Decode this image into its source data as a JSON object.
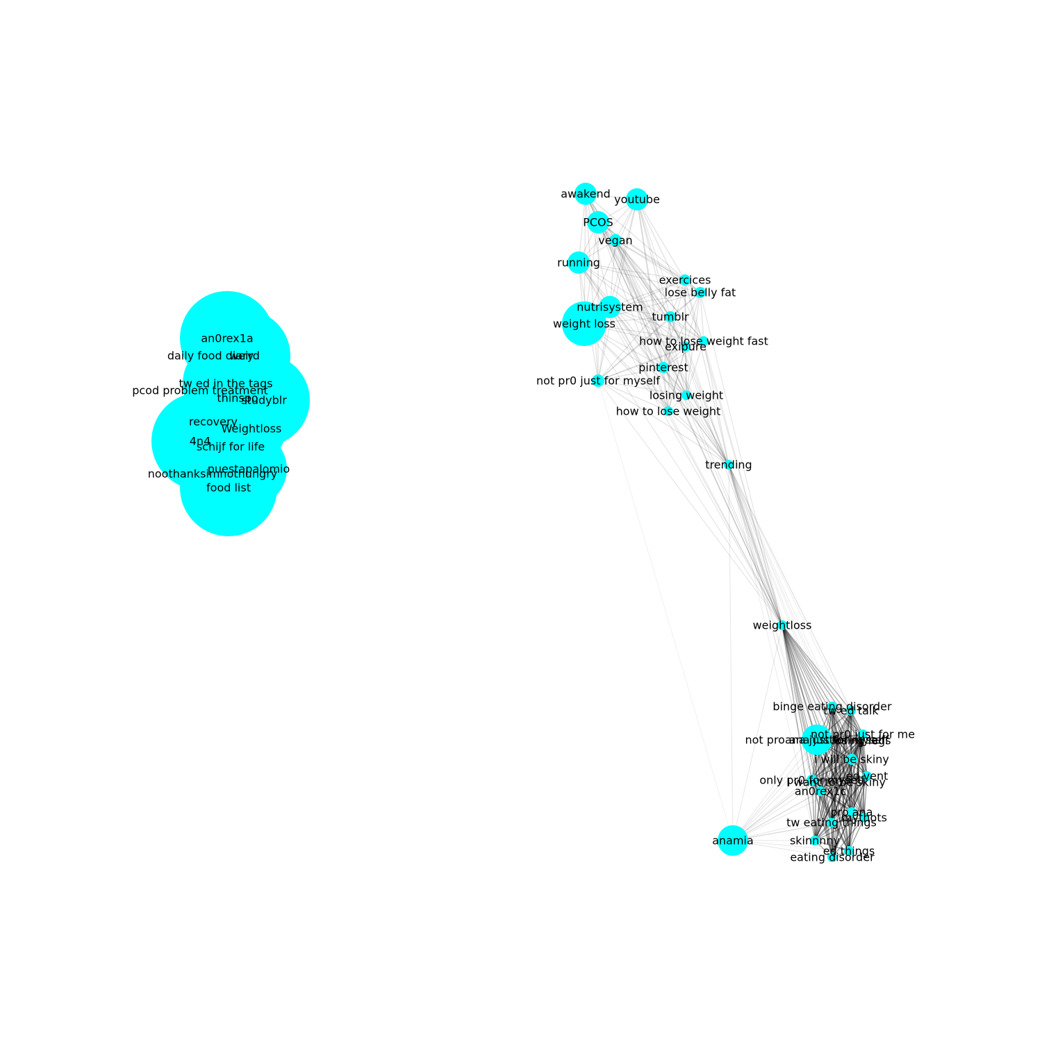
{
  "graph": {
    "type": "network",
    "node_color": "#00ffff",
    "edge_color": "#000000",
    "nodes": [
      {
        "id": "an0rex1a",
        "label": "an0rex1a"
      },
      {
        "id": "daily food diary",
        "label": "daily food diary"
      },
      {
        "id": "weird",
        "label": "weird"
      },
      {
        "id": "tw ed in the tags",
        "label": "tw ed in the tags"
      },
      {
        "id": "pcod problem treatment",
        "label": "pcod problem treatment"
      },
      {
        "id": "thinspo",
        "label": "thinspo"
      },
      {
        "id": "studyblr",
        "label": "studyblr"
      },
      {
        "id": "recovery",
        "label": "recovery"
      },
      {
        "id": "Weightloss",
        "label": "Weightloss"
      },
      {
        "id": "4n4",
        "label": "4n4"
      },
      {
        "id": "schijf for life",
        "label": "schijf for life"
      },
      {
        "id": "puestapalomio",
        "label": "puestapalomio"
      },
      {
        "id": "noothanksimnothungry",
        "label": "noothanksimnothungry"
      },
      {
        "id": "food list",
        "label": "food list"
      },
      {
        "id": "awakend",
        "label": "awakend"
      },
      {
        "id": "youtube",
        "label": "youtube"
      },
      {
        "id": "PCOS",
        "label": "PCOS"
      },
      {
        "id": "vegan",
        "label": "vegan"
      },
      {
        "id": "running",
        "label": "running"
      },
      {
        "id": "exercices",
        "label": "exercices"
      },
      {
        "id": "lose belly fat",
        "label": "lose belly fat"
      },
      {
        "id": "nutrisystem",
        "label": "nutrisystem"
      },
      {
        "id": "weight loss",
        "label": "weight loss"
      },
      {
        "id": "tumblr",
        "label": "tumblr"
      },
      {
        "id": "how to lose weight fast",
        "label": "how to lose weight fast"
      },
      {
        "id": "exipure",
        "label": "exipure"
      },
      {
        "id": "pinterest",
        "label": "pinterest"
      },
      {
        "id": "not pr0 just for myself",
        "label": "not pr0 just for myself"
      },
      {
        "id": "losing weight",
        "label": "losing weight"
      },
      {
        "id": "how to lose weight",
        "label": "how to lose weight"
      },
      {
        "id": "trending",
        "label": "trending"
      },
      {
        "id": "weightloss",
        "label": "weightloss"
      },
      {
        "id": "binge eating disorder",
        "label": "binge eating disorder"
      },
      {
        "id": "tw ed talk",
        "label": "tw ed talk"
      },
      {
        "id": "not pr0 just for me",
        "label": "not pr0 just for me"
      },
      {
        "id": "not proana just for myself",
        "label": "not proana just for myself"
      },
      {
        "id": "ana justforinyself",
        "label": "ana justforinyself"
      },
      {
        "id": "losing legs",
        "label": "losing legs"
      },
      {
        "id": "i will be skiny",
        "label": "i will be skiny"
      },
      {
        "id": "ed vent",
        "label": "ed vent"
      },
      {
        "id": "only pr0 for myself",
        "label": "only pr0 for myself"
      },
      {
        "id": "i want to be skiny",
        "label": "i want to be skiny"
      },
      {
        "id": "an0rex1c",
        "label": "an0rex1c"
      },
      {
        "id": "pro ana",
        "label": "pro ana"
      },
      {
        "id": "mythots",
        "label": "mythots"
      },
      {
        "id": "tw eating things",
        "label": "tw eating things"
      },
      {
        "id": "anamia",
        "label": "anamia"
      },
      {
        "id": "skinnnny",
        "label": "skinnnny"
      },
      {
        "id": "ed things",
        "label": "ed things"
      },
      {
        "id": "eating disorder",
        "label": "eating disorder"
      }
    ]
  }
}
